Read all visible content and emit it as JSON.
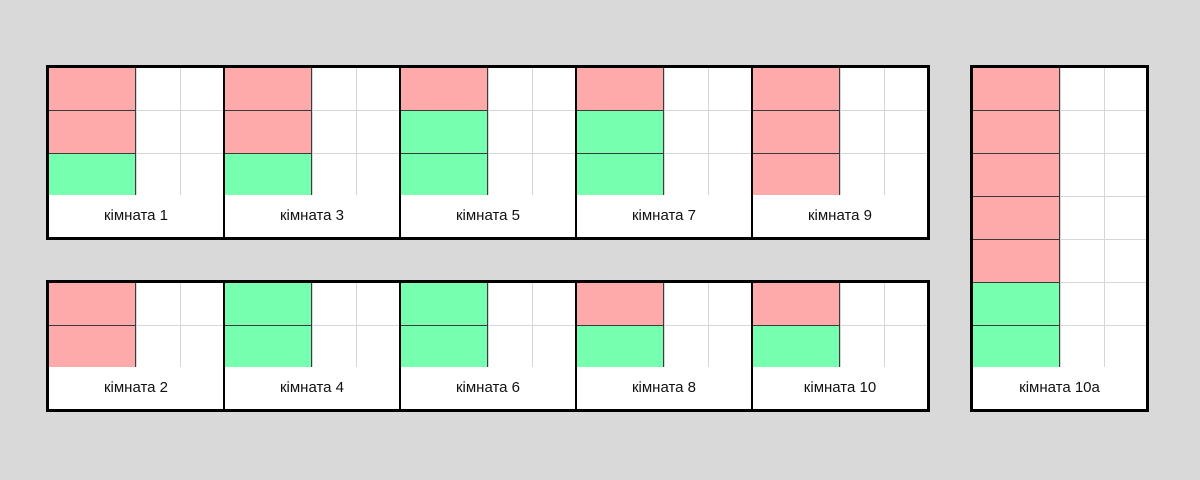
{
  "colors": {
    "background": "#d9d9d9",
    "occupied": "#ffaaaa",
    "free": "#77ffb0",
    "grid": "#d6d6d6",
    "border": "#000000"
  },
  "groups": [
    {
      "rooms": [
        {
          "label": "кімната 1",
          "slots": [
            "occupied",
            "occupied",
            "free"
          ]
        },
        {
          "label": "кімната 3",
          "slots": [
            "occupied",
            "occupied",
            "free"
          ]
        },
        {
          "label": "кімната 5",
          "slots": [
            "occupied",
            "free",
            "free"
          ]
        },
        {
          "label": "кімната 7",
          "slots": [
            "occupied",
            "free",
            "free"
          ]
        },
        {
          "label": "кімната 9",
          "slots": [
            "occupied",
            "occupied",
            "occupied"
          ]
        }
      ]
    },
    {
      "rooms": [
        {
          "label": "кімната 2",
          "slots": [
            "occupied",
            "occupied"
          ]
        },
        {
          "label": "кімната 4",
          "slots": [
            "free",
            "free"
          ]
        },
        {
          "label": "кімната 6",
          "slots": [
            "free",
            "free"
          ]
        },
        {
          "label": "кімната 8",
          "slots": [
            "occupied",
            "free"
          ]
        },
        {
          "label": "кімната 10",
          "slots": [
            "occupied",
            "free"
          ]
        }
      ]
    },
    {
      "rooms": [
        {
          "label": "кімната 10а",
          "slots": [
            "occupied",
            "occupied",
            "occupied",
            "occupied",
            "occupied",
            "free",
            "free"
          ]
        }
      ]
    }
  ]
}
